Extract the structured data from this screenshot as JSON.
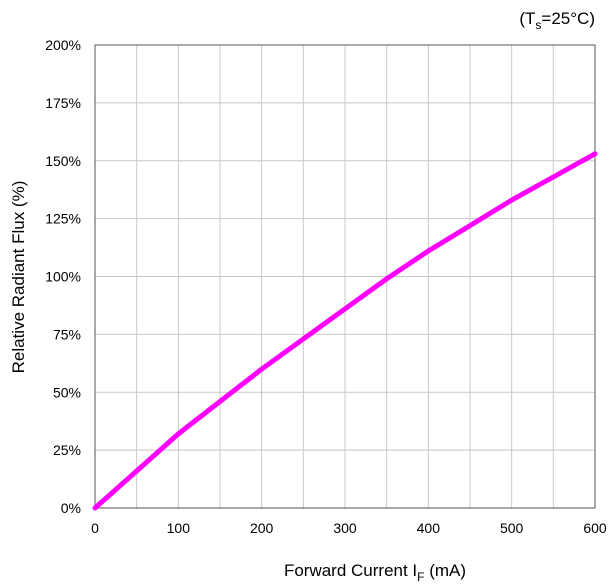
{
  "chart_data": {
    "type": "line",
    "condition": {
      "prefix": "(T",
      "sub": "s",
      "suffix": "=25°C)"
    },
    "xlabel": {
      "main": "Forward Current I",
      "sub": "F",
      "unit": " (mA)"
    },
    "ylabel": "Relative Radiant Flux (%)",
    "xlim": [
      0,
      600
    ],
    "ylim": [
      0,
      200
    ],
    "x_ticks": [
      "0",
      "100",
      "200",
      "300",
      "400",
      "500",
      "600"
    ],
    "y_ticks": [
      "0%",
      "25%",
      "50%",
      "75%",
      "100%",
      "125%",
      "150%",
      "175%",
      "200%"
    ],
    "grid": true,
    "series": [
      {
        "color": "#ff00ff",
        "x": [
          0,
          50,
          100,
          150,
          200,
          250,
          300,
          350,
          400,
          450,
          500,
          550,
          600
        ],
        "y": [
          0,
          16,
          32,
          46,
          60,
          73,
          86,
          99,
          111,
          122,
          133,
          143,
          153
        ]
      }
    ]
  }
}
